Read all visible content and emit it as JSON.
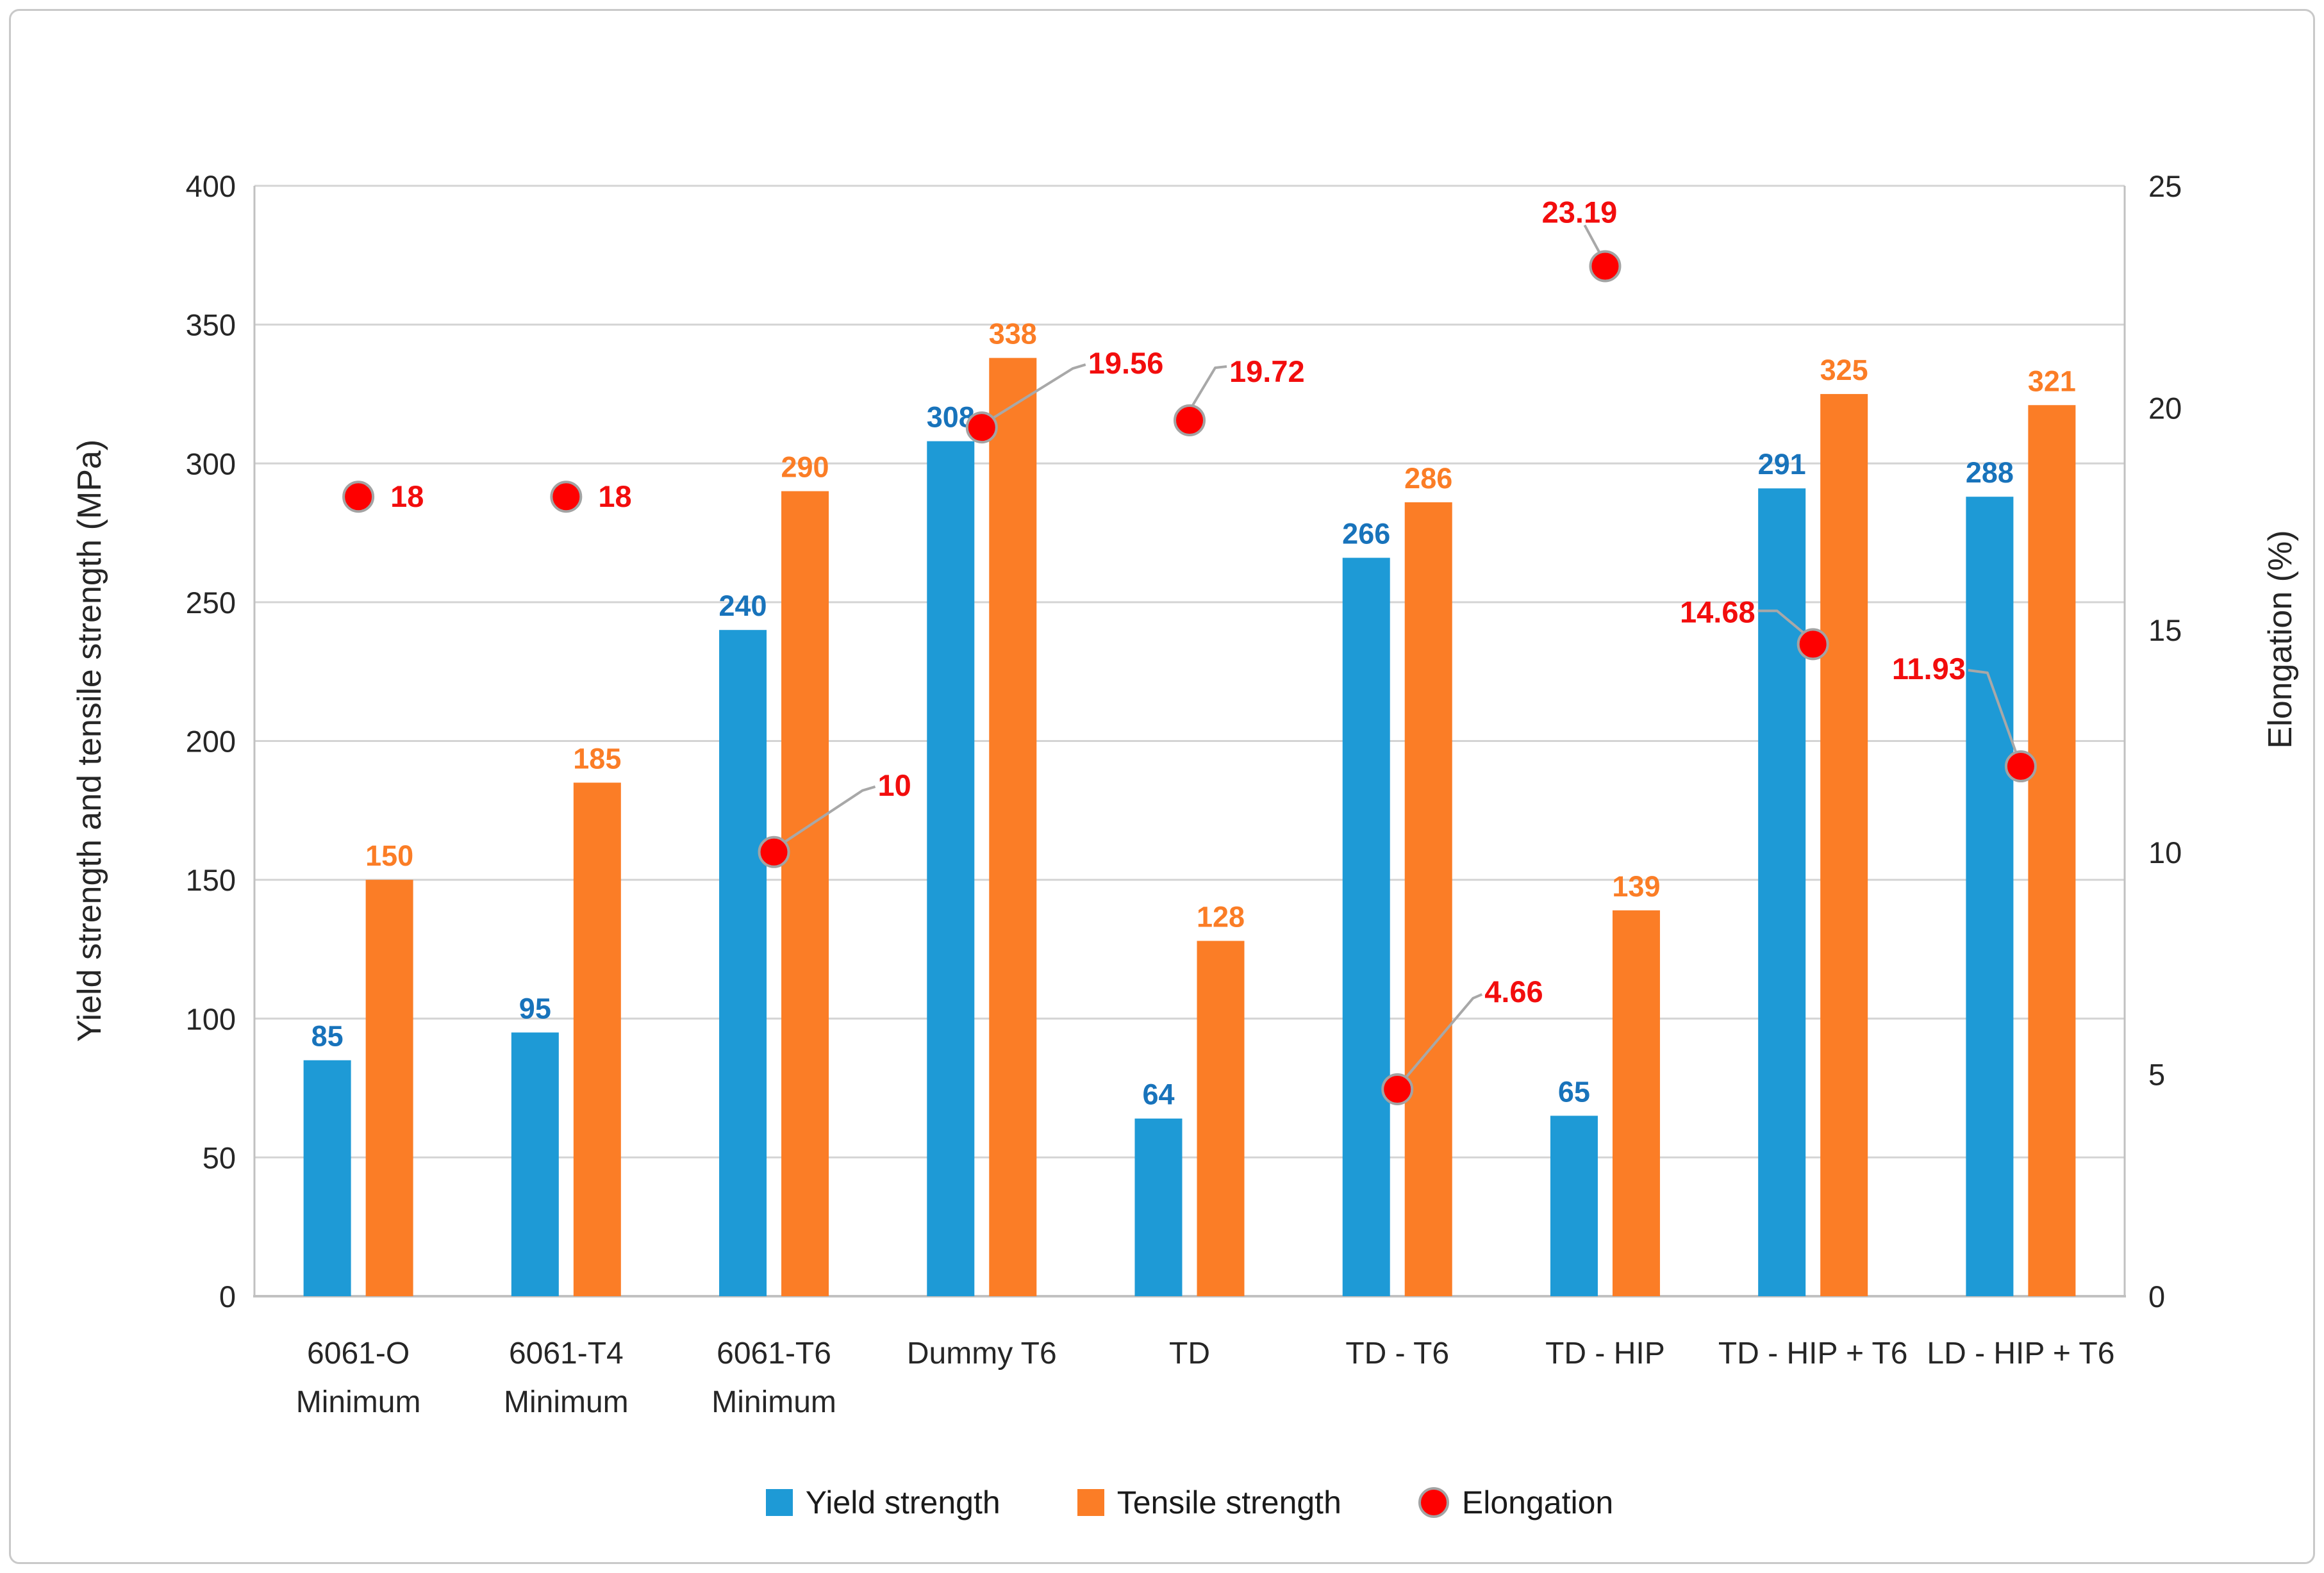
{
  "chart_data": {
    "type": "bar",
    "subtype": "clustered bars + scatter markers on secondary axis",
    "categories": [
      "6061-O\nMinimum",
      "6061-T4\nMinimum",
      "6061-T6\nMinimum",
      "Dummy T6",
      "TD",
      "TD - T6",
      "TD - HIP",
      "TD - HIP + T6",
      "LD - HIP + T6"
    ],
    "series": [
      {
        "name": "Yield strength",
        "type": "bar",
        "axis": "primary",
        "color": "#1e9ad6",
        "label_color": "#1873bb",
        "values": [
          85,
          95,
          240,
          308,
          64,
          266,
          65,
          291,
          288
        ]
      },
      {
        "name": "Tensile strength",
        "type": "bar",
        "axis": "primary",
        "color": "#fb7d26",
        "label_color": "#fb7d26",
        "values": [
          150,
          185,
          290,
          338,
          128,
          286,
          139,
          325,
          321
        ]
      },
      {
        "name": "Elongation",
        "type": "scatter",
        "axis": "secondary",
        "color": "#fe0000",
        "marker_border_color": "#a3a3a3",
        "label_color": "#f20d0d",
        "values": [
          18,
          18,
          10,
          19.56,
          19.72,
          4.66,
          23.19,
          14.68,
          11.93
        ],
        "labels": [
          "18",
          "18",
          "10",
          "19.56",
          "19.72",
          "4.66",
          "23.19",
          "14.68",
          "11.93"
        ]
      }
    ],
    "primary_axis": {
      "title": "Yield strength and tensile strength (MPa)",
      "min": 0,
      "max": 400,
      "tick_step": 50,
      "ticks": [
        0,
        50,
        100,
        150,
        200,
        250,
        300,
        350,
        400
      ]
    },
    "secondary_axis": {
      "title": "Elongation (%)",
      "min": 0,
      "max": 25,
      "tick_step": 5,
      "ticks": [
        0,
        5,
        10,
        15,
        20,
        25
      ]
    },
    "legend": {
      "position": "bottom",
      "items": [
        "Yield strength",
        "Tensile strength",
        "Elongation"
      ]
    },
    "grid": "horizontal gridlines on",
    "colors": {
      "gridline": "#d4d4d4",
      "axis_line": "#c1c1c1",
      "leader_line": "#a8a8a8",
      "figure_border": "#c9c9c9",
      "text": "#262626"
    }
  }
}
